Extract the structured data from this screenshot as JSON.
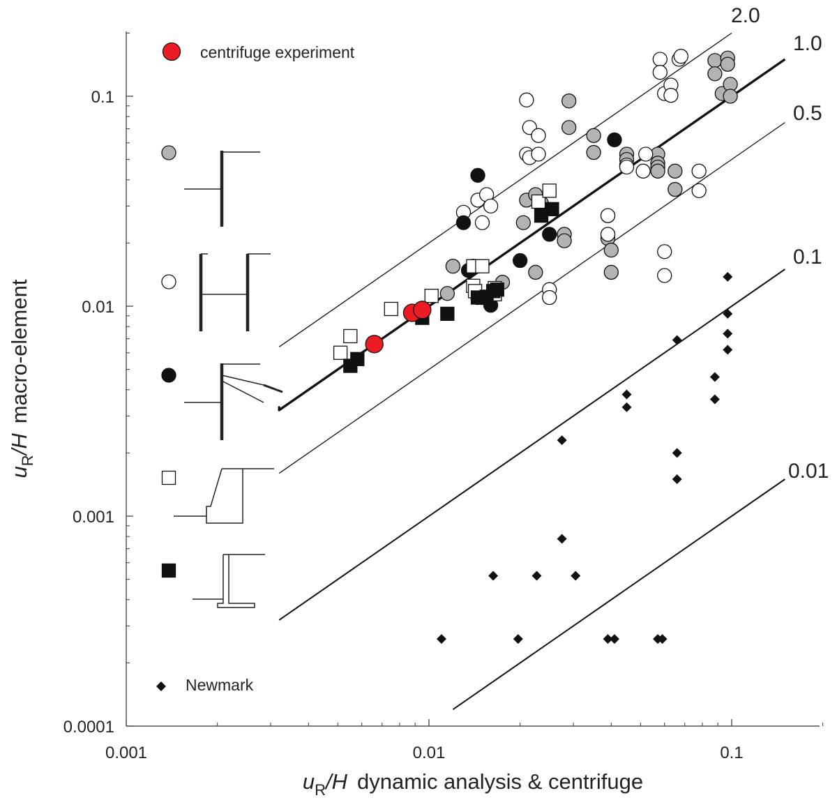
{
  "chart_data": {
    "type": "scatter",
    "x_scale": "log",
    "y_scale": "log",
    "xlim": [
      0.001,
      0.2
    ],
    "ylim": [
      0.0001,
      0.2
    ],
    "grid": false,
    "xlabel": {
      "var": "u",
      "sub": "R",
      "div": "/H",
      "desc": "dynamic analysis & centrifuge"
    },
    "ylabel": {
      "var": "u",
      "sub": "R",
      "div": "/H",
      "desc": "macro-element"
    },
    "x_ticks": [
      {
        "value": 0.001,
        "label": "0.001"
      },
      {
        "value": 0.01,
        "label": "0.01"
      },
      {
        "value": 0.1,
        "label": "0.1"
      }
    ],
    "y_ticks": [
      {
        "value": 0.0001,
        "label": "0.0001"
      },
      {
        "value": 0.001,
        "label": "0.001"
      },
      {
        "value": 0.01,
        "label": "0.01"
      },
      {
        "value": 0.1,
        "label": "0.1"
      }
    ],
    "reference_lines": [
      {
        "ratio": 2.0,
        "label": "2.0",
        "x_start": 0.0032,
        "x_end": 0.1,
        "style": "thin"
      },
      {
        "ratio": 1.0,
        "label": "1.0",
        "x_start": 0.0032,
        "x_end": 0.15,
        "style": "bold"
      },
      {
        "ratio": 0.5,
        "label": "0.5",
        "x_start": 0.0032,
        "x_end": 0.15,
        "style": "thin"
      },
      {
        "ratio": 0.1,
        "label": "0.1",
        "x_start": 0.0032,
        "x_end": 0.15,
        "style": "medium"
      },
      {
        "ratio": 0.01,
        "label": "0.01",
        "x_start": 0.012,
        "x_end": 0.15,
        "style": "medium"
      }
    ],
    "bold_line_left_point": [
      0.0032,
      0.0033
    ],
    "legend": [
      {
        "marker": "red-circle",
        "label": "centrifuge experiment"
      },
      {
        "marker": "diamond",
        "label": "Newmark"
      }
    ],
    "series": [
      {
        "marker": "grey-circle",
        "points": [
          [
            0.012,
            0.0155
          ],
          [
            0.0115,
            0.0115
          ],
          [
            0.0175,
            0.013
          ],
          [
            0.0225,
            0.0145
          ],
          [
            0.021,
            0.032
          ],
          [
            0.0205,
            0.025
          ],
          [
            0.0225,
            0.034
          ],
          [
            0.0235,
            0.031
          ],
          [
            0.028,
            0.022
          ],
          [
            0.028,
            0.0205
          ],
          [
            0.029,
            0.095
          ],
          [
            0.029,
            0.071
          ],
          [
            0.035,
            0.065
          ],
          [
            0.035,
            0.054
          ],
          [
            0.039,
            0.027
          ],
          [
            0.039,
            0.021
          ],
          [
            0.04,
            0.0185
          ],
          [
            0.04,
            0.0145
          ],
          [
            0.045,
            0.053
          ],
          [
            0.045,
            0.05
          ],
          [
            0.057,
            0.053
          ],
          [
            0.057,
            0.048
          ],
          [
            0.057,
            0.046
          ],
          [
            0.057,
            0.044
          ],
          [
            0.065,
            0.044
          ],
          [
            0.065,
            0.036
          ],
          [
            0.088,
            0.148
          ],
          [
            0.088,
            0.128
          ],
          [
            0.093,
            0.103
          ],
          [
            0.097,
            0.152
          ],
          [
            0.097,
            0.142
          ],
          [
            0.099,
            0.114
          ],
          [
            0.099,
            0.1
          ]
        ]
      },
      {
        "marker": "white-circle",
        "points": [
          [
            0.013,
            0.028
          ],
          [
            0.014,
            0.0155
          ],
          [
            0.0145,
            0.032
          ],
          [
            0.015,
            0.025
          ],
          [
            0.0155,
            0.034
          ],
          [
            0.016,
            0.03
          ],
          [
            0.021,
            0.096
          ],
          [
            0.021,
            0.053
          ],
          [
            0.0215,
            0.071
          ],
          [
            0.0215,
            0.051
          ],
          [
            0.023,
            0.065
          ],
          [
            0.023,
            0.053
          ],
          [
            0.025,
            0.012
          ],
          [
            0.025,
            0.011
          ],
          [
            0.039,
            0.027
          ],
          [
            0.039,
            0.022
          ],
          [
            0.045,
            0.047
          ],
          [
            0.045,
            0.046
          ],
          [
            0.051,
            0.044
          ],
          [
            0.052,
            0.053
          ],
          [
            0.058,
            0.15
          ],
          [
            0.058,
            0.13
          ],
          [
            0.06,
            0.103
          ],
          [
            0.06,
            0.0182
          ],
          [
            0.06,
            0.014
          ],
          [
            0.063,
            0.113
          ],
          [
            0.063,
            0.101
          ],
          [
            0.067,
            0.15
          ],
          [
            0.068,
            0.155
          ],
          [
            0.078,
            0.044
          ],
          [
            0.078,
            0.0355
          ]
        ]
      },
      {
        "marker": "black-circle",
        "points": [
          [
            0.013,
            0.025
          ],
          [
            0.0135,
            0.0148
          ],
          [
            0.0145,
            0.042
          ],
          [
            0.0145,
            0.011
          ],
          [
            0.015,
            0.011
          ],
          [
            0.016,
            0.0101
          ],
          [
            0.02,
            0.0165
          ],
          [
            0.025,
            0.022
          ],
          [
            0.041,
            0.062
          ]
        ]
      },
      {
        "marker": "white-square",
        "points": [
          [
            0.0051,
            0.006
          ],
          [
            0.0055,
            0.0072
          ],
          [
            0.0075,
            0.0097
          ],
          [
            0.0102,
            0.0112
          ],
          [
            0.014,
            0.0155
          ],
          [
            0.014,
            0.0125
          ],
          [
            0.0142,
            0.0118
          ],
          [
            0.015,
            0.0155
          ],
          [
            0.0165,
            0.0122
          ],
          [
            0.0165,
            0.0114
          ],
          [
            0.023,
            0.0315
          ],
          [
            0.025,
            0.0355
          ]
        ]
      },
      {
        "marker": "black-square",
        "points": [
          [
            0.0055,
            0.0052
          ],
          [
            0.0058,
            0.0056
          ],
          [
            0.0095,
            0.0088
          ],
          [
            0.0115,
            0.0092
          ],
          [
            0.0145,
            0.011
          ],
          [
            0.0155,
            0.0111
          ],
          [
            0.0163,
            0.0118
          ],
          [
            0.0168,
            0.012
          ],
          [
            0.0235,
            0.027
          ],
          [
            0.0255,
            0.029
          ]
        ]
      },
      {
        "marker": "red-circle",
        "label": "centrifuge experiment",
        "points": [
          [
            0.0066,
            0.0066
          ],
          [
            0.0088,
            0.0093
          ],
          [
            0.0095,
            0.0096
          ]
        ]
      },
      {
        "marker": "diamond",
        "label": "Newmark",
        "points": [
          [
            0.011,
            0.00026
          ],
          [
            0.0163,
            0.00052
          ],
          [
            0.0197,
            0.00026
          ],
          [
            0.0227,
            0.00052
          ],
          [
            0.0275,
            0.0023
          ],
          [
            0.0275,
            0.00078
          ],
          [
            0.0305,
            0.00052
          ],
          [
            0.039,
            0.00026
          ],
          [
            0.041,
            0.00026
          ],
          [
            0.045,
            0.0038
          ],
          [
            0.045,
            0.0033
          ],
          [
            0.057,
            0.00026
          ],
          [
            0.059,
            0.00026
          ],
          [
            0.066,
            0.0069
          ],
          [
            0.066,
            0.002
          ],
          [
            0.066,
            0.0015
          ],
          [
            0.088,
            0.0046
          ],
          [
            0.088,
            0.0036
          ],
          [
            0.097,
            0.0138
          ],
          [
            0.097,
            0.0092
          ],
          [
            0.097,
            0.0074
          ],
          [
            0.097,
            0.0062
          ]
        ]
      }
    ]
  }
}
